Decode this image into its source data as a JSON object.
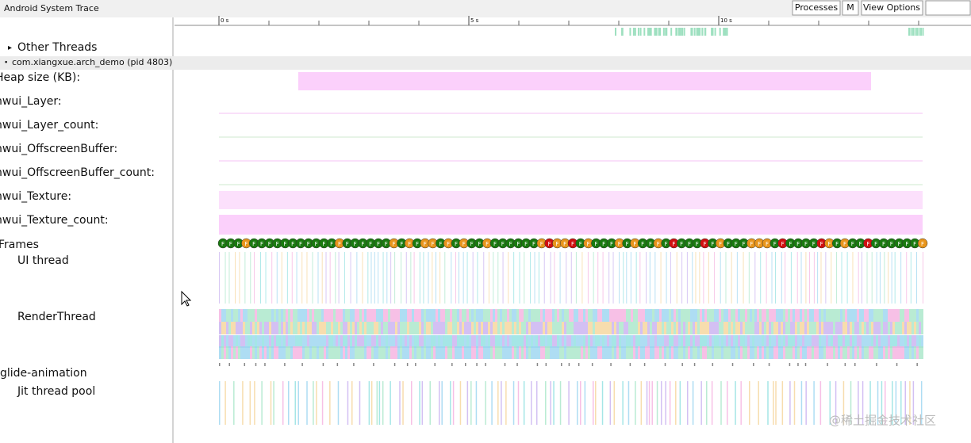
{
  "header": {
    "title": "Android System Trace",
    "buttons": [
      "Processes",
      "M",
      "View Options"
    ]
  },
  "timeline": {
    "labels": [
      "0 s",
      "5 s",
      "10 s"
    ]
  },
  "other_threads": "Other Threads",
  "process": "com.xiangxue.arch_demo (pid 4803)",
  "tracks": [
    "Heap size (KB):",
    "hwui_Layer:",
    "hwui_Layer_count:",
    "hwui_OffscreenBuffer:",
    "hwui_OffscreenBuffer_count:",
    "hwui_Texture:",
    "hwui_Texture_count:"
  ],
  "frames": {
    "label": "Frames",
    "mark": "F"
  },
  "threads": [
    "UI thread",
    "RenderThread",
    "glide-animation",
    "Jit thread pool"
  ],
  "watermark": "@稀土掘金技术社区"
}
